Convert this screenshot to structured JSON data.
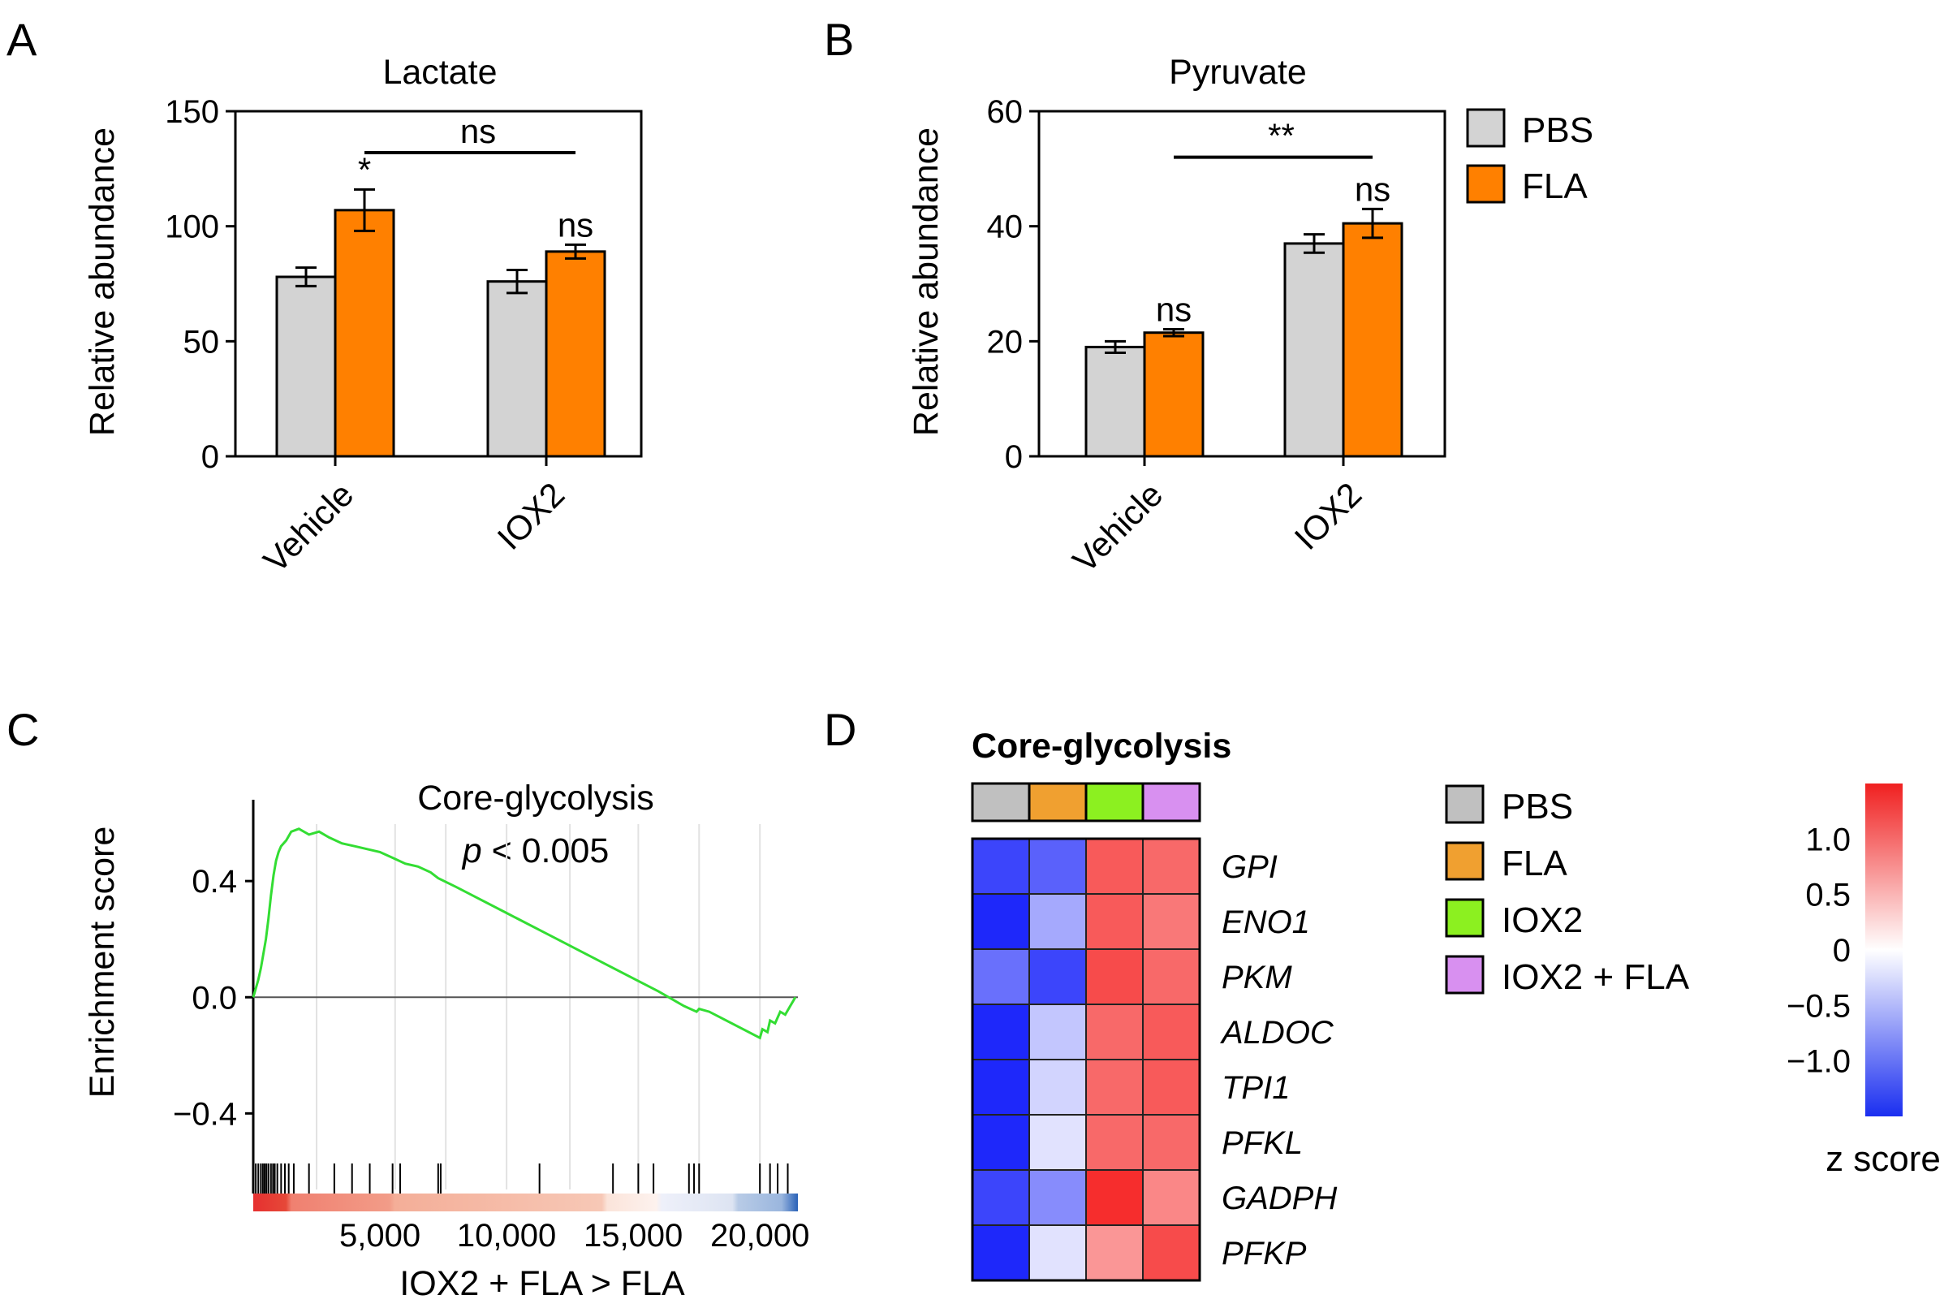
{
  "panels": {
    "A": {
      "label": "A"
    },
    "B": {
      "label": "B"
    },
    "C": {
      "label": "C"
    },
    "D": {
      "label": "D"
    }
  },
  "legend_ab": [
    {
      "label": "PBS",
      "color": "#d3d3d3"
    },
    {
      "label": "FLA",
      "color": "#ff8000"
    }
  ],
  "legend_d": [
    {
      "label": "PBS",
      "color": "#c0c0c0"
    },
    {
      "label": "FLA",
      "color": "#f0a030"
    },
    {
      "label": "IOX2",
      "color": "#8cf020"
    },
    {
      "label": "IOX2 + FLA",
      "color": "#d890f0"
    }
  ],
  "chart_data": [
    {
      "id": "A",
      "type": "bar",
      "title": "Lactate",
      "ylabel": "Relative abundance",
      "xlabel": "",
      "ylim": [
        0,
        150
      ],
      "yticks": [
        0,
        50,
        100,
        150
      ],
      "categories": [
        "Vehicle",
        "IOX2"
      ],
      "series": [
        {
          "name": "PBS",
          "color": "#d3d3d3",
          "values": [
            78,
            76
          ],
          "errors": [
            4,
            5
          ]
        },
        {
          "name": "FLA",
          "color": "#ff8000",
          "values": [
            107,
            89
          ],
          "errors": [
            9,
            3
          ]
        }
      ],
      "annotations": [
        {
          "text": "*",
          "category": 0,
          "series": 1
        },
        {
          "text": "ns",
          "category": 1,
          "series": 1
        },
        {
          "text": "ns",
          "bracket": [
            "Vehicle FLA",
            "IOX2 FLA"
          ],
          "y": 132
        }
      ]
    },
    {
      "id": "B",
      "type": "bar",
      "title": "Pyruvate",
      "ylabel": "Relative abundance",
      "xlabel": "",
      "ylim": [
        0,
        60
      ],
      "yticks": [
        0,
        20,
        40,
        60
      ],
      "categories": [
        "Vehicle",
        "IOX2"
      ],
      "series": [
        {
          "name": "PBS",
          "color": "#d3d3d3",
          "values": [
            19,
            37
          ],
          "errors": [
            1,
            1.6
          ]
        },
        {
          "name": "FLA",
          "color": "#ff8000",
          "values": [
            21.5,
            40.5
          ],
          "errors": [
            0.6,
            2.5
          ]
        }
      ],
      "annotations": [
        {
          "text": "ns",
          "category": 0,
          "series": 1
        },
        {
          "text": "ns",
          "category": 1,
          "series": 1
        },
        {
          "text": "**",
          "bracket": [
            "Vehicle FLA",
            "IOX2 FLA"
          ],
          "y": 52
        }
      ]
    },
    {
      "id": "C",
      "type": "line",
      "title": "Core-glycolysis",
      "stat_prefix": "p",
      "stat_rest": " < 0.005",
      "ylabel": "Enrichment score",
      "xlabel": "IOX2 + FLA > FLA",
      "xlim": [
        0,
        21500
      ],
      "ylim": [
        -0.55,
        0.68
      ],
      "xticks": [
        5000,
        10000,
        15000,
        20000
      ],
      "xtick_labels": [
        "5,000",
        "10,000",
        "15,000",
        "20,000"
      ],
      "yticks": [
        0.4,
        0.0,
        -0.4
      ],
      "ytick_labels": [
        "0.4",
        "0.0",
        "−0.4"
      ],
      "line_color": "#33dd33",
      "x": [
        0,
        200,
        300,
        400,
        500,
        600,
        700,
        800,
        900,
        1000,
        1100,
        1300,
        1500,
        1800,
        2200,
        2600,
        3000,
        3500,
        4000,
        4500,
        5000,
        5500,
        6000,
        6500,
        7000,
        7300,
        8000,
        10000,
        12000,
        14000,
        16000,
        17000,
        17500,
        17600,
        18000,
        20000,
        20100,
        20300,
        20400,
        20600,
        20800,
        21000,
        21200,
        21400
      ],
      "y": [
        0.0,
        0.06,
        0.1,
        0.15,
        0.2,
        0.27,
        0.35,
        0.42,
        0.47,
        0.5,
        0.52,
        0.54,
        0.57,
        0.58,
        0.56,
        0.57,
        0.55,
        0.53,
        0.52,
        0.51,
        0.5,
        0.48,
        0.46,
        0.45,
        0.43,
        0.41,
        0.38,
        0.29,
        0.2,
        0.11,
        0.02,
        -0.03,
        -0.05,
        -0.04,
        -0.05,
        -0.14,
        -0.11,
        -0.12,
        -0.08,
        -0.09,
        -0.05,
        -0.06,
        -0.03,
        0.0
      ],
      "hits": [
        100,
        200,
        300,
        380,
        450,
        520,
        600,
        700,
        780,
        850,
        950,
        1100,
        1250,
        1400,
        1600,
        2200,
        3200,
        3900,
        4600,
        5500,
        5800,
        7300,
        7400,
        11300,
        14200,
        15200,
        15800,
        17200,
        17400,
        17600,
        20000,
        20400,
        20700,
        21100
      ],
      "vlines": [
        2500,
        5600,
        7600,
        10000,
        12500,
        15200,
        17600,
        20000
      ]
    },
    {
      "id": "D",
      "type": "heatmap",
      "title": "Core-glycolysis",
      "columns": [
        "PBS",
        "FLA",
        "IOX2",
        "IOX2 + FLA"
      ],
      "column_colors": [
        "#c0c0c0",
        "#f0a030",
        "#8cf020",
        "#d890f0"
      ],
      "rows": [
        "GPI",
        "ENO1",
        "PKM",
        "ALDOC",
        "TPI1",
        "PFKL",
        "GADPH",
        "PFKP"
      ],
      "values": [
        [
          -1.3,
          -1.1,
          1.1,
          1.0
        ],
        [
          -1.5,
          -0.6,
          1.1,
          0.9
        ],
        [
          -1.0,
          -1.3,
          1.2,
          1.0
        ],
        [
          -1.5,
          -0.4,
          1.0,
          1.1
        ],
        [
          -1.5,
          -0.3,
          1.0,
          1.1
        ],
        [
          -1.5,
          -0.2,
          1.0,
          1.0
        ],
        [
          -1.3,
          -0.8,
          1.4,
          0.8
        ],
        [
          -1.5,
          -0.2,
          0.7,
          1.2
        ]
      ],
      "colorbar": {
        "label": "z score",
        "ticks": [
          1.0,
          0.5,
          0,
          -0.5,
          -1.0
        ],
        "tick_labels": [
          "1.0",
          "0.5",
          "0",
          "−0.5",
          "−1.0"
        ],
        "range": [
          -1.5,
          1.5
        ]
      }
    }
  ]
}
